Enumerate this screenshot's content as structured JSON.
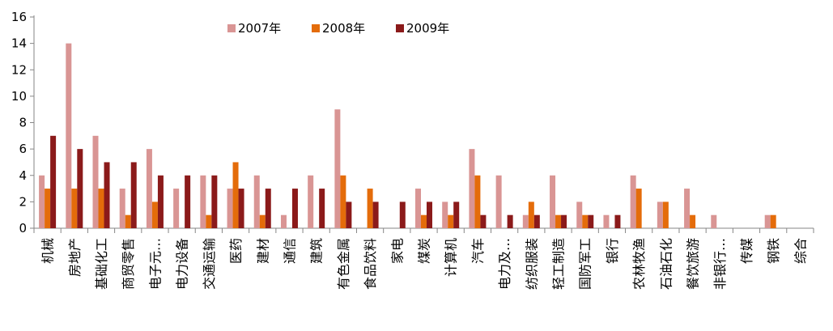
{
  "chart_data": {
    "type": "bar",
    "title": "",
    "xlabel": "",
    "ylabel": "",
    "ylim": [
      0,
      16
    ],
    "yticks": [
      0,
      2,
      4,
      6,
      8,
      10,
      12,
      14,
      16
    ],
    "grid": false,
    "legend_position": "top-center",
    "categories": [
      "机械",
      "房地产",
      "基础化工",
      "商贸零售",
      "电子元…",
      "电力设备",
      "交通运输",
      "医药",
      "建材",
      "通信",
      "建筑",
      "有色金属",
      "食品饮料",
      "家电",
      "煤炭",
      "计算机",
      "汽车",
      "电力及…",
      "纺织服装",
      "轻工制造",
      "国防军工",
      "银行",
      "农林牧渔",
      "石油石化",
      "餐饮旅游",
      "非银行…",
      "传媒",
      "钢铁",
      "综合"
    ],
    "series": [
      {
        "name": "2007年",
        "color": "#D99594",
        "values": [
          4,
          14,
          7,
          3,
          6,
          3,
          4,
          3,
          4,
          1,
          4,
          9,
          0,
          0,
          3,
          2,
          6,
          4,
          1,
          4,
          2,
          1,
          4,
          2,
          3,
          1,
          0,
          1,
          0
        ]
      },
      {
        "name": "2008年",
        "color": "#E46C0A",
        "values": [
          3,
          3,
          3,
          1,
          2,
          0,
          1,
          5,
          1,
          0,
          0,
          4,
          3,
          0,
          1,
          1,
          4,
          0,
          2,
          1,
          1,
          0,
          3,
          2,
          1,
          0,
          0,
          1,
          0
        ]
      },
      {
        "name": "2009年",
        "color": "#8B1A1A",
        "values": [
          7,
          6,
          5,
          5,
          4,
          4,
          4,
          3,
          3,
          3,
          3,
          2,
          2,
          2,
          2,
          2,
          1,
          1,
          1,
          1,
          1,
          1,
          0,
          0,
          0,
          0,
          0,
          0,
          0
        ]
      }
    ]
  }
}
